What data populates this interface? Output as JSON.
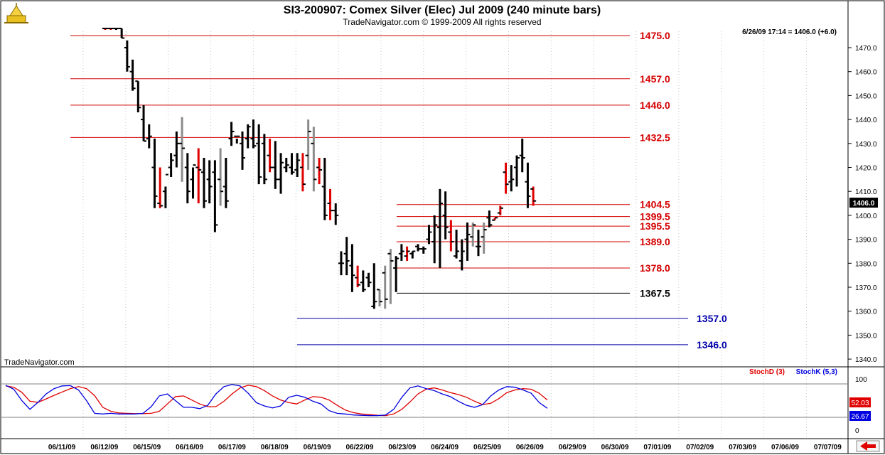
{
  "header": {
    "title": "SI3-200907:  Comex Silver (Elec) Jul 2009  (240 minute bars)",
    "copyright": "TradeNavigator.com © 1999-2009 All rights reserved",
    "last_quote": "6/26/09 17:14 = 1406.0 (+6.0)",
    "watermark": "TradeNavigator.com",
    "current_price_tag": "1406.0"
  },
  "colors": {
    "up_tick": "#e00000",
    "down_tick": "#000000",
    "grey_bar": "#8c8c8c",
    "red_level": "#d40000",
    "black_level": "#000000",
    "blue_level": "#0000aa",
    "stoch_d": "#e00000",
    "stoch_k": "#0000e0"
  },
  "chart_data": [
    {
      "type": "ohlc-bar",
      "title": "SI3-200907:  Comex Silver (Elec) Jul 2009  (240 minute bars)",
      "ylim": [
        1335,
        1478
      ],
      "y_ticks": [
        1340,
        1350,
        1360,
        1370,
        1380,
        1390,
        1400,
        1410,
        1420,
        1430,
        1440,
        1450,
        1460,
        1470
      ],
      "x_tick_labels": [
        "06/11/09",
        "06/12/09",
        "06/15/09",
        "06/16/09",
        "06/17/09",
        "06/18/09",
        "06/19/09",
        "06/22/09",
        "06/23/09",
        "06/24/09",
        "06/25/09",
        "06/26/09",
        "06/29/09",
        "06/30/09",
        "07/01/09",
        "07/02/09",
        "07/03/09",
        "07/06/09",
        "07/07/09"
      ],
      "bars_high": [
        1478,
        1478,
        1478,
        1478,
        1473,
        1465,
        1456,
        1446,
        1438,
        1432,
        1420,
        1412,
        1426,
        1435,
        1441,
        1426,
        1420,
        1428,
        1424,
        1423,
        1423,
        1428,
        1424,
        1439,
        1432,
        1435,
        1438,
        1440,
        1438,
        1434,
        1432,
        1431,
        1426,
        1424,
        1426,
        1426,
        1426,
        1440,
        1437,
        1424,
        1424,
        1411,
        1405,
        1385,
        1391,
        1388,
        1379,
        1377,
        1376,
        1380,
        1369,
        1379,
        1386,
        1383,
        1388,
        1387,
        1385,
        1388,
        1387,
        1396,
        1400,
        1411,
        1410,
        1398,
        1394,
        1390,
        1397,
        1397,
        1394,
        1397,
        1402,
        1399,
        1404,
        1422,
        1421,
        1425,
        1432,
        1422,
        1412
      ],
      "bars_low": [
        1478,
        1478,
        1478,
        1474,
        1460,
        1452,
        1443,
        1431,
        1428,
        1403,
        1403,
        1403,
        1416,
        1420,
        1414,
        1405,
        1407,
        1405,
        1403,
        1405,
        1393,
        1404,
        1403,
        1429,
        1430,
        1419,
        1428,
        1428,
        1413,
        1413,
        1418,
        1411,
        1409,
        1418,
        1417,
        1416,
        1410,
        1419,
        1410,
        1413,
        1398,
        1398,
        1396,
        1375,
        1375,
        1368,
        1370,
        1368,
        1370,
        1361,
        1362,
        1361,
        1363,
        1368,
        1381,
        1381,
        1382,
        1385,
        1384,
        1388,
        1380,
        1378,
        1390,
        1385,
        1382,
        1377,
        1381,
        1387,
        1383,
        1384,
        1395,
        1398,
        1400,
        1409,
        1410,
        1412,
        1418,
        1403,
        1404
      ],
      "bars_open": [
        1478,
        1478,
        1478,
        1478,
        1470,
        1460,
        1456,
        1440,
        1432,
        1420,
        1405,
        1410,
        1420,
        1425,
        1430,
        1420,
        1415,
        1420,
        1418,
        1415,
        1418,
        1415,
        1412,
        1432,
        1433,
        1430,
        1432,
        1432,
        1430,
        1430,
        1425,
        1420,
        1415,
        1420,
        1420,
        1419,
        1420,
        1425,
        1430,
        1420,
        1412,
        1405,
        1402,
        1380,
        1384,
        1379,
        1374,
        1372,
        1374,
        1362,
        1369,
        1376,
        1384,
        1378,
        1384,
        1383,
        1384,
        1387,
        1386,
        1390,
        1389,
        1395,
        1400,
        1393,
        1383,
        1381,
        1390,
        1391,
        1387,
        1391,
        1399,
        1398,
        1401,
        1418,
        1414,
        1420,
        1425,
        1414,
        1411
      ],
      "bars_close": [
        1478,
        1478,
        1478,
        1474,
        1462,
        1453,
        1445,
        1431,
        1433,
        1408,
        1404,
        1417,
        1423,
        1430,
        1428,
        1410,
        1421,
        1419,
        1406,
        1412,
        1396,
        1410,
        1406,
        1435,
        1433,
        1424,
        1437,
        1429,
        1416,
        1415,
        1420,
        1415,
        1422,
        1421,
        1418,
        1423,
        1413,
        1435,
        1415,
        1419,
        1400,
        1402,
        1400,
        1380,
        1381,
        1375,
        1371,
        1369,
        1372,
        1364,
        1364,
        1365,
        1381,
        1382,
        1385,
        1385,
        1385,
        1386,
        1386,
        1393,
        1396,
        1405,
        1395,
        1389,
        1385,
        1385,
        1392,
        1396,
        1387,
        1394,
        1396,
        1399,
        1403,
        1413,
        1415,
        1424,
        1424,
        1408,
        1406
      ],
      "bars_color": [
        "up",
        "up",
        "down",
        "down",
        "down",
        "down",
        "down",
        "down",
        "down",
        "down",
        "up",
        "down",
        "down",
        "down",
        "grey",
        "down",
        "down",
        "up",
        "down",
        "down",
        "down",
        "grey",
        "down",
        "down",
        "down",
        "down",
        "down",
        "down",
        "down",
        "down",
        "up",
        "down",
        "down",
        "down",
        "down",
        "down",
        "up",
        "grey",
        "grey",
        "up",
        "down",
        "up",
        "down",
        "down",
        "down",
        "down",
        "up",
        "down",
        "down",
        "down",
        "grey",
        "grey",
        "grey",
        "down",
        "down",
        "up",
        "down",
        "down",
        "down",
        "down",
        "down",
        "down",
        "down",
        "up",
        "down",
        "down",
        "down",
        "grey",
        "down",
        "grey",
        "down",
        "up",
        "up",
        "up",
        "down",
        "down",
        "down",
        "down",
        "up"
      ],
      "levels": [
        {
          "label": "1475.0",
          "value": 1475.0,
          "style": "red"
        },
        {
          "label": "1457.0",
          "value": 1457.0,
          "style": "red"
        },
        {
          "label": "1446.0",
          "value": 1446.0,
          "style": "red"
        },
        {
          "label": "1432.5",
          "value": 1432.5,
          "style": "red"
        },
        {
          "label": "1404.5",
          "value": 1404.5,
          "style": "red"
        },
        {
          "label": "1399.5",
          "value": 1399.5,
          "style": "red"
        },
        {
          "label": "1395.5",
          "value": 1395.5,
          "style": "red"
        },
        {
          "label": "1389.0",
          "value": 1389.0,
          "style": "red"
        },
        {
          "label": "1378.0",
          "value": 1378.0,
          "style": "red"
        },
        {
          "label": "1367.5",
          "value": 1367.5,
          "style": "black"
        },
        {
          "label": "1357.0",
          "value": 1357.0,
          "style": "blue"
        },
        {
          "label": "1346.0",
          "value": 1346.0,
          "style": "blue"
        }
      ]
    },
    {
      "type": "line",
      "ylim": [
        0,
        100
      ],
      "y_ticks": [
        "100",
        "0"
      ],
      "series": [
        {
          "name": "StochD (3)",
          "last_value": "52.03",
          "values": [
            94,
            90,
            75,
            48,
            45,
            55,
            66,
            76,
            86,
            92,
            86,
            65,
            30,
            18,
            13,
            12,
            11,
            11,
            12,
            18,
            40,
            62,
            64,
            52,
            40,
            32,
            32,
            48,
            70,
            88,
            96,
            92,
            80,
            64,
            52,
            44,
            40,
            52,
            62,
            60,
            52,
            36,
            22,
            14,
            10,
            8,
            6,
            5,
            10,
            24,
            46,
            70,
            84,
            88,
            82,
            74,
            68,
            60,
            48,
            38,
            42,
            56,
            74,
            82,
            86,
            84,
            72,
            52
          ]
        },
        {
          "name": "StochK (5,3)",
          "last_value": "26.67",
          "values": [
            96,
            84,
            50,
            24,
            45,
            70,
            86,
            94,
            95,
            82,
            50,
            12,
            10,
            12,
            10,
            10,
            10,
            12,
            32,
            64,
            70,
            50,
            30,
            30,
            26,
            36,
            70,
            92,
            98,
            94,
            72,
            44,
            34,
            28,
            34,
            60,
            66,
            60,
            48,
            40,
            20,
            12,
            10,
            7,
            6,
            5,
            5,
            7,
            24,
            60,
            88,
            94,
            86,
            80,
            70,
            62,
            48,
            36,
            30,
            38,
            64,
            82,
            92,
            90,
            82,
            72,
            44,
            27
          ]
        }
      ]
    }
  ]
}
